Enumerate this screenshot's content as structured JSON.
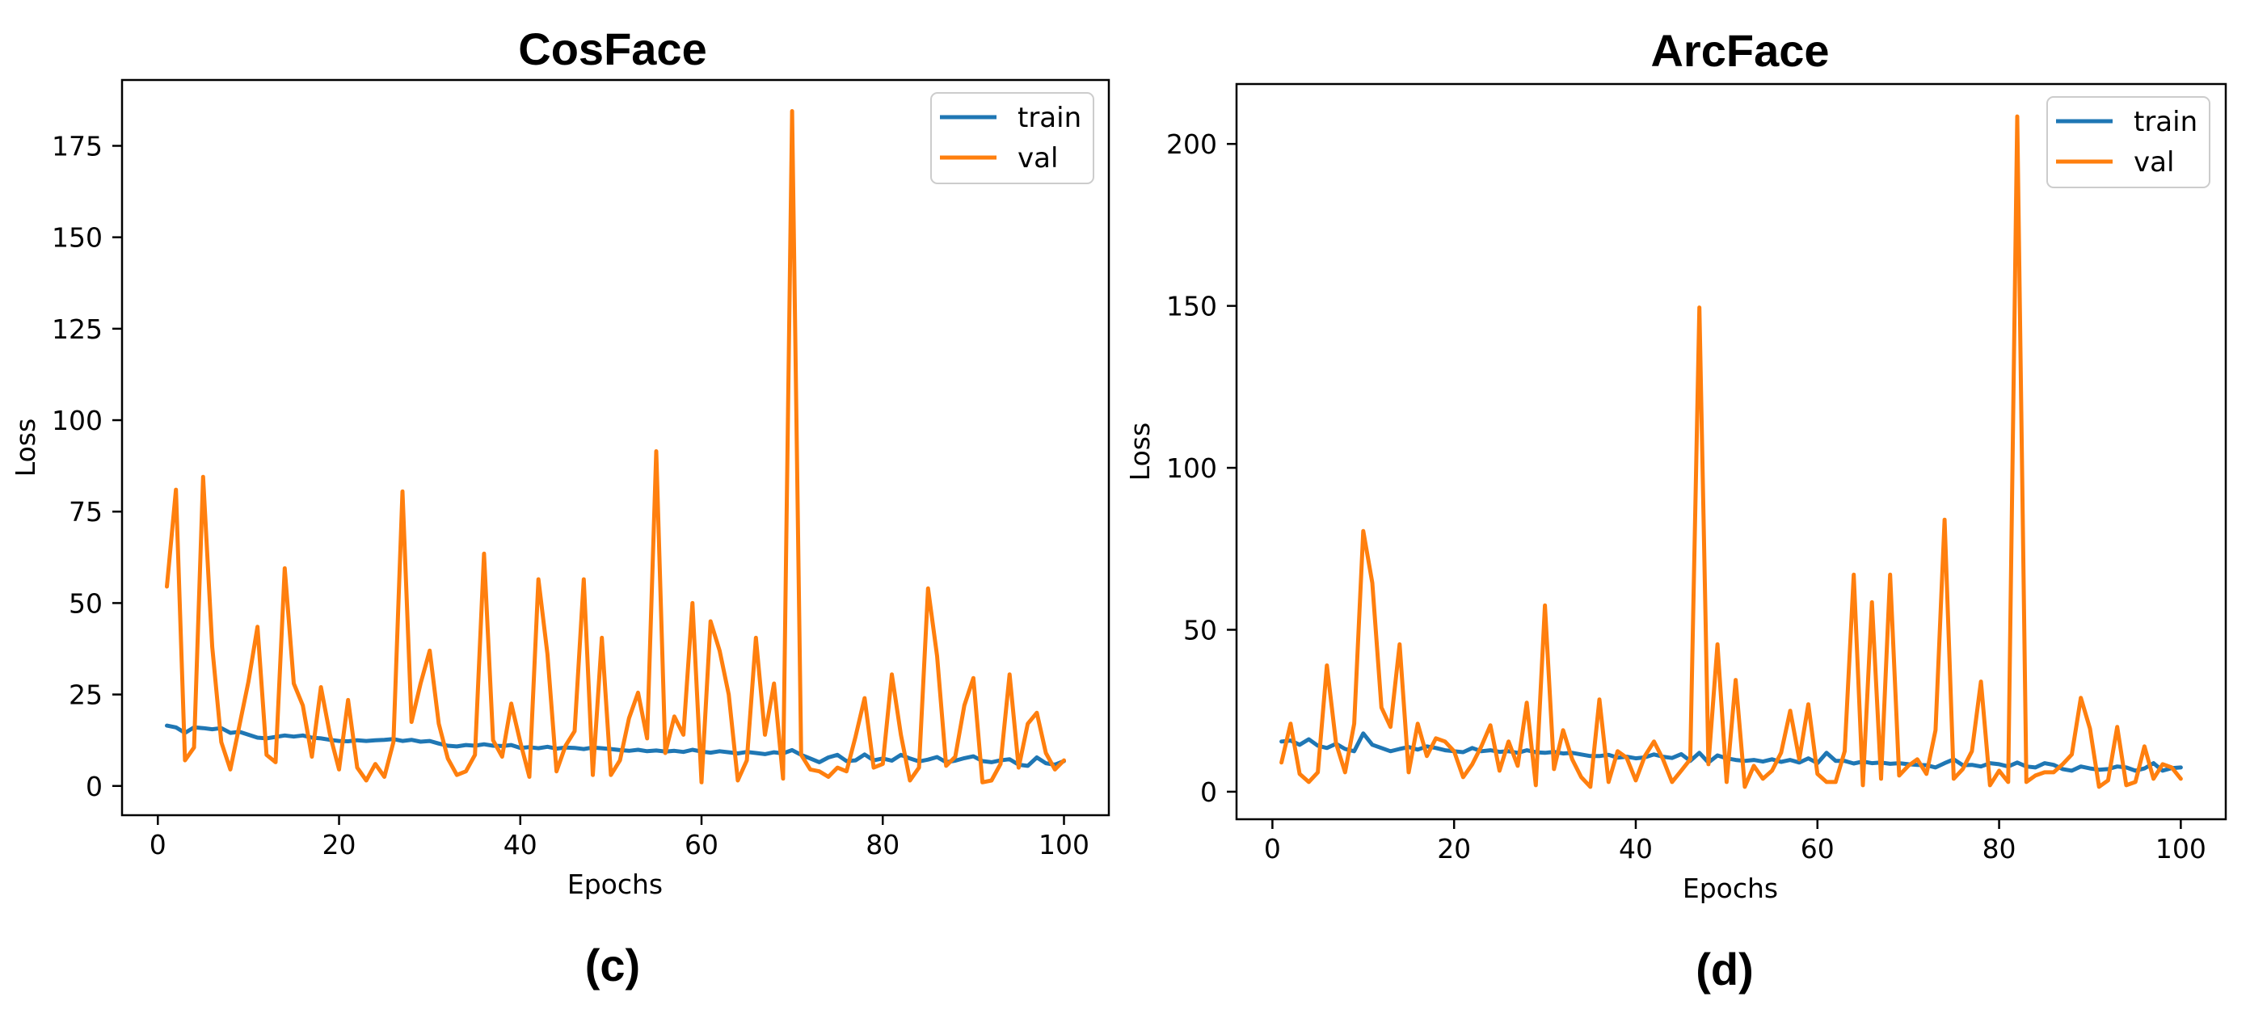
{
  "chart_data": [
    {
      "type": "line",
      "title": "CosFace",
      "caption": "(c)",
      "xlabel": "Epochs",
      "ylabel": "Loss",
      "xlim": [
        -3.95,
        104.95
      ],
      "ylim": [
        -8,
        193
      ],
      "xticks": [
        0,
        20,
        40,
        60,
        80,
        100
      ],
      "yticks": [
        0,
        25,
        50,
        75,
        100,
        125,
        150,
        175
      ],
      "grid": false,
      "legend_position": "top-right",
      "x": [
        1,
        2,
        3,
        4,
        5,
        6,
        7,
        8,
        9,
        10,
        11,
        12,
        13,
        14,
        15,
        16,
        17,
        18,
        19,
        20,
        21,
        22,
        23,
        24,
        25,
        26,
        27,
        28,
        29,
        30,
        31,
        32,
        33,
        34,
        35,
        36,
        37,
        38,
        39,
        40,
        41,
        42,
        43,
        44,
        45,
        46,
        47,
        48,
        49,
        50,
        51,
        52,
        53,
        54,
        55,
        56,
        57,
        58,
        59,
        60,
        61,
        62,
        63,
        64,
        65,
        66,
        67,
        68,
        69,
        70,
        71,
        72,
        73,
        74,
        75,
        76,
        77,
        78,
        79,
        80,
        81,
        82,
        83,
        84,
        85,
        86,
        87,
        88,
        89,
        90,
        91,
        92,
        93,
        94,
        95,
        96,
        97,
        98,
        99,
        100
      ],
      "series": [
        {
          "name": "train",
          "color": "#1f77b4",
          "values": [
            16.5,
            16,
            14.5,
            16,
            15.8,
            15.5,
            15.8,
            14.5,
            14.8,
            14,
            13.2,
            13,
            13.4,
            13.8,
            13.5,
            13.8,
            13.2,
            13,
            12.6,
            12.3,
            12.2,
            12.5,
            12.3,
            12.5,
            12.6,
            12.8,
            12.3,
            12.6,
            12.1,
            12.3,
            11.6,
            11,
            10.8,
            11.2,
            11,
            11.4,
            11,
            10.9,
            11.2,
            10.4,
            10.6,
            10.3,
            10.7,
            10.2,
            10.5,
            10.4,
            10.1,
            10.5,
            10.3,
            10.1,
            9.8,
            9.6,
            9.9,
            9.5,
            9.7,
            9.4,
            9.6,
            9.3,
            9.9,
            9.4,
            9.1,
            9.5,
            9.2,
            8.9,
            9.3,
            9,
            8.7,
            9.2,
            8.9,
            9.8,
            8.5,
            7.5,
            6.5,
            7.8,
            8.5,
            6.8,
            7,
            8.6,
            7,
            7.5,
            6.9,
            8.5,
            7.5,
            6.7,
            7.2,
            7.9,
            6.5,
            6.9,
            7.6,
            8.1,
            6.8,
            6.5,
            7,
            7.3,
            5.8,
            5.5,
            7.8,
            6.2,
            5.8,
            6.8
          ]
        },
        {
          "name": "val",
          "color": "#ff7f0e",
          "values": [
            54.5,
            81,
            7,
            10.5,
            84.5,
            38,
            12,
            4.5,
            16.5,
            28.5,
            43.5,
            8.5,
            6.5,
            59.5,
            28,
            22,
            8,
            27,
            14,
            4.5,
            23.5,
            5,
            1.5,
            6,
            2.5,
            12,
            80.5,
            17.5,
            28,
            37,
            17,
            7.5,
            3,
            4,
            8.5,
            63.5,
            12.5,
            8,
            22.5,
            12,
            2.5,
            56.5,
            36,
            4,
            11,
            15,
            56.5,
            3,
            40.5,
            3,
            7,
            18.5,
            25.5,
            13,
            91.5,
            9,
            19,
            14,
            50,
            1,
            45,
            37,
            25,
            1.5,
            7,
            40.5,
            14,
            28,
            2,
            184.5,
            8.5,
            4.5,
            4,
            2.5,
            5,
            4,
            13.5,
            24,
            5,
            6,
            30.5,
            14,
            1.5,
            5,
            54,
            35.5,
            5.5,
            8,
            22,
            29.5,
            1,
            1.5,
            6,
            30.5,
            5,
            17,
            20,
            9,
            4.5,
            7
          ]
        }
      ]
    },
    {
      "type": "line",
      "title": "ArcFace",
      "caption": "(d)",
      "xlabel": "Epochs",
      "ylabel": "Loss",
      "xlim": [
        -3.95,
        104.95
      ],
      "ylim": [
        -8.5,
        218.5
      ],
      "xticks": [
        0,
        20,
        40,
        60,
        80,
        100
      ],
      "yticks": [
        0,
        50,
        100,
        150,
        200
      ],
      "grid": false,
      "legend_position": "top-right",
      "x": [
        1,
        2,
        3,
        4,
        5,
        6,
        7,
        8,
        9,
        10,
        11,
        12,
        13,
        14,
        15,
        16,
        17,
        18,
        19,
        20,
        21,
        22,
        23,
        24,
        25,
        26,
        27,
        28,
        29,
        30,
        31,
        32,
        33,
        34,
        35,
        36,
        37,
        38,
        39,
        40,
        41,
        42,
        43,
        44,
        45,
        46,
        47,
        48,
        49,
        50,
        51,
        52,
        53,
        54,
        55,
        56,
        57,
        58,
        59,
        60,
        61,
        62,
        63,
        64,
        65,
        66,
        67,
        68,
        69,
        70,
        71,
        72,
        73,
        74,
        75,
        76,
        77,
        78,
        79,
        80,
        81,
        82,
        83,
        84,
        85,
        86,
        87,
        88,
        89,
        90,
        91,
        92,
        93,
        94,
        95,
        96,
        97,
        98,
        99,
        100
      ],
      "series": [
        {
          "name": "train",
          "color": "#1f77b4",
          "values": [
            15.5,
            15.8,
            14.5,
            16.2,
            14.2,
            13.5,
            14.8,
            13.2,
            12.5,
            18,
            14.5,
            13.5,
            12.5,
            13.2,
            13.8,
            13,
            14,
            13.5,
            12.8,
            12.5,
            12.2,
            13.5,
            12.5,
            12.8,
            12.3,
            12.5,
            12,
            12.8,
            12.2,
            12,
            12.3,
            11.8,
            12,
            11.5,
            11,
            11,
            11.4,
            10.5,
            10.8,
            10.3,
            10.6,
            11.5,
            10.8,
            10.4,
            11.6,
            9.5,
            12,
            9,
            11.2,
            10.3,
            9.8,
            9.5,
            9.8,
            9.3,
            10,
            9.2,
            9.8,
            9,
            10.3,
            8.8,
            12,
            9.5,
            9.5,
            8.7,
            9.3,
            8.8,
            9,
            8.6,
            8.8,
            8.5,
            8.3,
            8.2,
            7.5,
            8.8,
            10,
            8.2,
            8.3,
            7.8,
            8.8,
            8.5,
            7.8,
            9,
            7.8,
            7.5,
            8.8,
            8.3,
            7,
            6.5,
            7.8,
            7.2,
            6.8,
            7,
            7.8,
            7.5,
            6.5,
            7.2,
            8.8,
            6.5,
            7.3,
            7.5
          ]
        },
        {
          "name": "val",
          "color": "#ff7f0e",
          "values": [
            9,
            21,
            5.5,
            3,
            6,
            39,
            15,
            6,
            21,
            80.5,
            64.5,
            26,
            20,
            45.5,
            6,
            21,
            11,
            16.5,
            15.5,
            12.5,
            4.5,
            8.5,
            14,
            20.5,
            6.5,
            15.5,
            8,
            27.5,
            2,
            57.5,
            7,
            19,
            10,
            4.5,
            1.5,
            28.5,
            3,
            12.5,
            10.5,
            3.5,
            11,
            15.5,
            10,
            3,
            6.5,
            10,
            149.5,
            8.5,
            45.5,
            3,
            34.5,
            1.5,
            8,
            4,
            6.5,
            12,
            25,
            10,
            27,
            5.5,
            3,
            3,
            12.5,
            67,
            2,
            58.5,
            4,
            67,
            5,
            8,
            10,
            5.5,
            19,
            84,
            4,
            7,
            12.5,
            34,
            2,
            6.5,
            3,
            208.5,
            3,
            5,
            6,
            6,
            8.5,
            11.5,
            29,
            19.5,
            1.5,
            3.5,
            20,
            2,
            3,
            14,
            4,
            8.5,
            7.5,
            4
          ]
        }
      ]
    }
  ]
}
